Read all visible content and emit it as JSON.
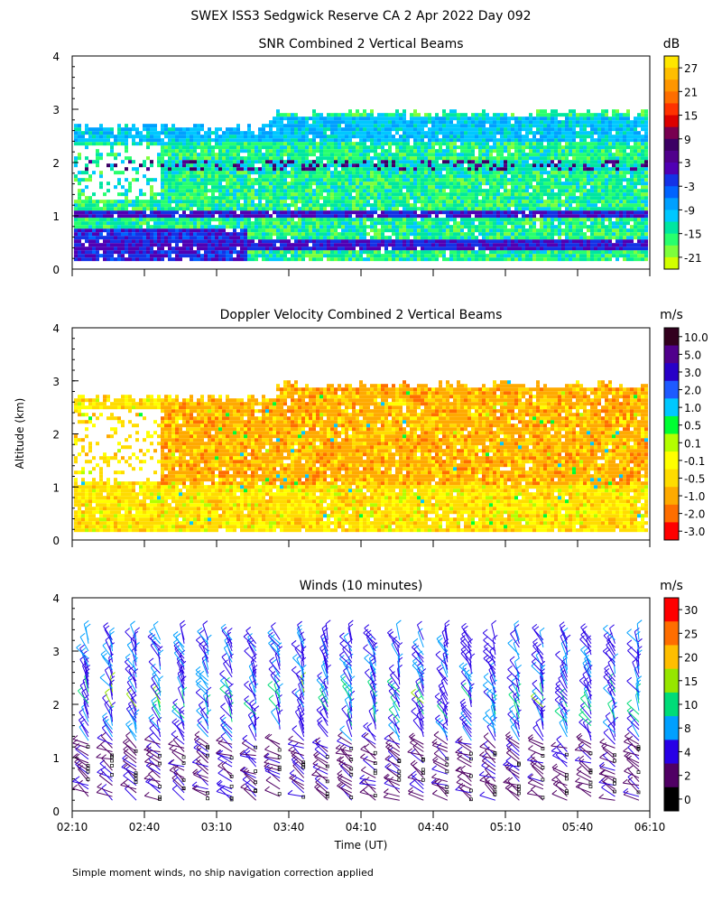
{
  "figure": {
    "title": "SWEX ISS3 Sedgwick Reserve CA    2 Apr 2022 Day 092",
    "ylabel": "Altitude (km)",
    "xlabel": "Time (UT)",
    "footnote": "Simple moment winds, no ship navigation correction applied",
    "x_tick_labels": [
      "02:10",
      "02:40",
      "03:10",
      "03:40",
      "04:10",
      "04:40",
      "05:10",
      "05:40",
      "06:10"
    ]
  },
  "chart_data": [
    {
      "type": "heatmap",
      "title": "SNR Combined 2 Vertical Beams",
      "ylim": [
        0,
        4
      ],
      "y_ticks": [
        0,
        1,
        2,
        3,
        4
      ],
      "xlim": [
        "02:10",
        "06:10"
      ],
      "colorbar": {
        "unit": "dB",
        "levels": [
          -21,
          -18,
          -15,
          -12,
          -9,
          -6,
          -3,
          0,
          3,
          6,
          9,
          12,
          15,
          18,
          21,
          24,
          27,
          30
        ],
        "tick_labels": [
          "-21",
          "-15",
          "-9",
          "-3",
          "3",
          "9",
          "15",
          "21",
          "27"
        ],
        "colors": [
          "#d2ff00",
          "#7dff3c",
          "#28ff6e",
          "#00e6a0",
          "#00c8ff",
          "#00a0ff",
          "#0064ff",
          "#1432e6",
          "#5000b4",
          "#50008c",
          "#3c0064",
          "#780050",
          "#dc0000",
          "#ff3200",
          "#ff6e00",
          "#ff9600",
          "#ffbe00",
          "#ffe600"
        ]
      },
      "data_extent_km": [
        0.15,
        2.9
      ],
      "features": [
        {
          "label": "high-SNR layer",
          "altitude_km": 1.0,
          "value_db": 6
        },
        {
          "label": "near-surface layer",
          "altitude_km": 0.4,
          "value_db": 6
        },
        {
          "label": "upper layer",
          "altitude_km": 2.6,
          "value_db": -4
        },
        {
          "label": "upper enhanced patches",
          "altitude_km": 1.9,
          "value_db": 12
        }
      ]
    },
    {
      "type": "heatmap",
      "title": "Doppler Velocity Combined 2 Vertical Beams",
      "ylim": [
        0,
        4
      ],
      "y_ticks": [
        0,
        1,
        2,
        3,
        4
      ],
      "xlim": [
        "02:10",
        "06:10"
      ],
      "colorbar": {
        "unit": "m/s",
        "tick_labels": [
          "10.0",
          "5.0",
          "3.0",
          "2.0",
          "1.0",
          "0.5",
          "0.1",
          "-0.1",
          "-0.5",
          "-1.0",
          "-2.0",
          "-3.0"
        ],
        "colors": [
          "#32001e",
          "#50008c",
          "#2800c8",
          "#1e5aff",
          "#00c8ff",
          "#00ff32",
          "#b4ff00",
          "#ffff00",
          "#ffdc00",
          "#ffaa00",
          "#ff6e00",
          "#ff0000"
        ]
      },
      "data_extent_km": [
        0.15,
        2.9
      ],
      "dominant_range_m_s": [
        -2.0,
        0.1
      ]
    },
    {
      "type": "scatter",
      "title": "Winds (10 minutes)",
      "ylim": [
        0,
        4
      ],
      "y_ticks": [
        0,
        1,
        2,
        3,
        4
      ],
      "xlim": [
        "02:10",
        "06:10"
      ],
      "profile_interval_min": 10,
      "colorbar": {
        "unit": "m/s",
        "levels": [
          0,
          2,
          4,
          8,
          10,
          15,
          20,
          25,
          30
        ],
        "tick_labels": [
          "0",
          "2",
          "4",
          "8",
          "10",
          "15",
          "20",
          "25",
          "30"
        ],
        "colors": [
          "#000000",
          "#500064",
          "#2800e6",
          "#00a0ff",
          "#00dc78",
          "#96e600",
          "#ffbe00",
          "#ff6e00",
          "#ff0000"
        ]
      },
      "profiles": [
        "02:10",
        "02:20",
        "02:30",
        "02:40",
        "02:50",
        "03:00",
        "03:10",
        "03:20",
        "03:30",
        "03:40",
        "03:50",
        "04:00",
        "04:10",
        "04:20",
        "04:30",
        "04:40",
        "04:50",
        "05:00",
        "05:10",
        "05:20",
        "05:30",
        "05:40",
        "05:50",
        "06:00"
      ]
    }
  ]
}
